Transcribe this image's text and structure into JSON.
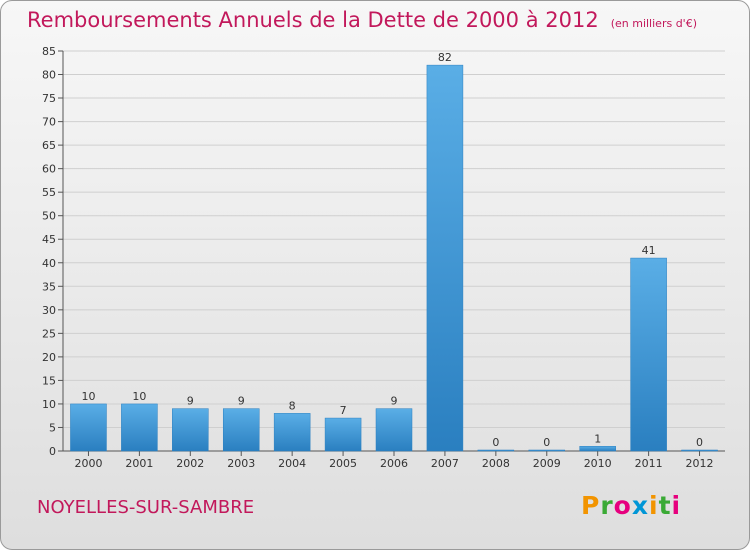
{
  "header": {
    "title": "Remboursements Annuels de la Dette de 2000 à 2012",
    "unit": "(en milliers d'€)"
  },
  "commune": "NOYELLES-SUR-SAMBRE",
  "brand": {
    "letters": [
      "P",
      "r",
      "o",
      "x",
      "i",
      "t",
      "i"
    ],
    "colors": [
      "#f29400",
      "#3aaa35",
      "#e6007e",
      "#0096d6",
      "#f29400",
      "#3aaa35",
      "#e6007e"
    ]
  },
  "chart_data": {
    "type": "bar",
    "categories": [
      "2000",
      "2001",
      "2002",
      "2003",
      "2004",
      "2005",
      "2006",
      "2007",
      "2008",
      "2009",
      "2010",
      "2011",
      "2012"
    ],
    "values": [
      10,
      10,
      9,
      9,
      8,
      7,
      9,
      82,
      0,
      0,
      1,
      41,
      0
    ],
    "data_labels": [
      "10",
      "10",
      "9",
      "9",
      "8",
      "7",
      "9",
      "82",
      "0",
      "0",
      "1",
      "41",
      "0"
    ],
    "ylim": [
      0,
      85
    ],
    "yticks": [
      0,
      5,
      10,
      15,
      20,
      25,
      30,
      35,
      40,
      45,
      50,
      55,
      60,
      65,
      70,
      75,
      80,
      85
    ],
    "grid": true,
    "bar_color": "#3c9ad9"
  }
}
